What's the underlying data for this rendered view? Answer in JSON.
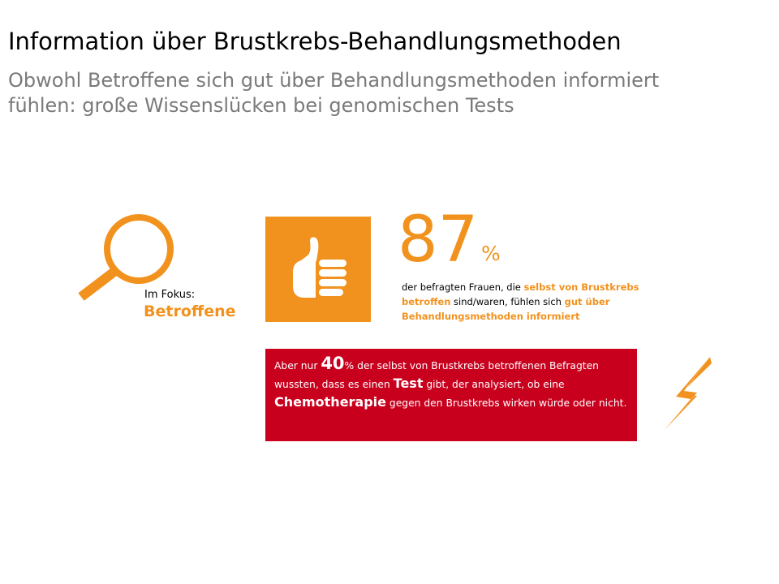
{
  "slide": {
    "title": "Information über Brustkrebs-Behandlungsmethoden",
    "subtitle_line1": "Obwohl Betroffene sich gut über Behandlungsmethoden informiert",
    "subtitle_line2": "fühlen: große Wissenslücken bei genomischen Tests"
  },
  "focus": {
    "label": "Im Fokus:",
    "value": "Betroffene"
  },
  "stat": {
    "number": "87",
    "unit": "%",
    "desc_part1": "der befragten Frauen, die ",
    "desc_hl1": "selbst von Brustkrebs betroffen",
    "desc_part2": " sind/waren, fühlen sich ",
    "desc_hl2": "gut über Behandlungsmethoden informiert"
  },
  "callout": {
    "part1": "Aber nur ",
    "highlight_number": "40",
    "part2": "% der selbst von Brustkrebs betroffenen Befragten wussten, dass es einen ",
    "highlight_test": "Test",
    "part3": " gibt, der analysiert, ob eine ",
    "highlight_chemo": "Chemotherapie",
    "part4": " gegen den Brustkrebs wirken würde oder nicht."
  },
  "icons": {
    "magnifier": "magnifier-icon",
    "thumbs_up": "thumbs-up-icon",
    "lightning": "lightning-icon"
  },
  "colors": {
    "accent_orange": "#f2921e",
    "alert_red": "#c8001e",
    "subtitle_gray": "#7a7a7a"
  }
}
